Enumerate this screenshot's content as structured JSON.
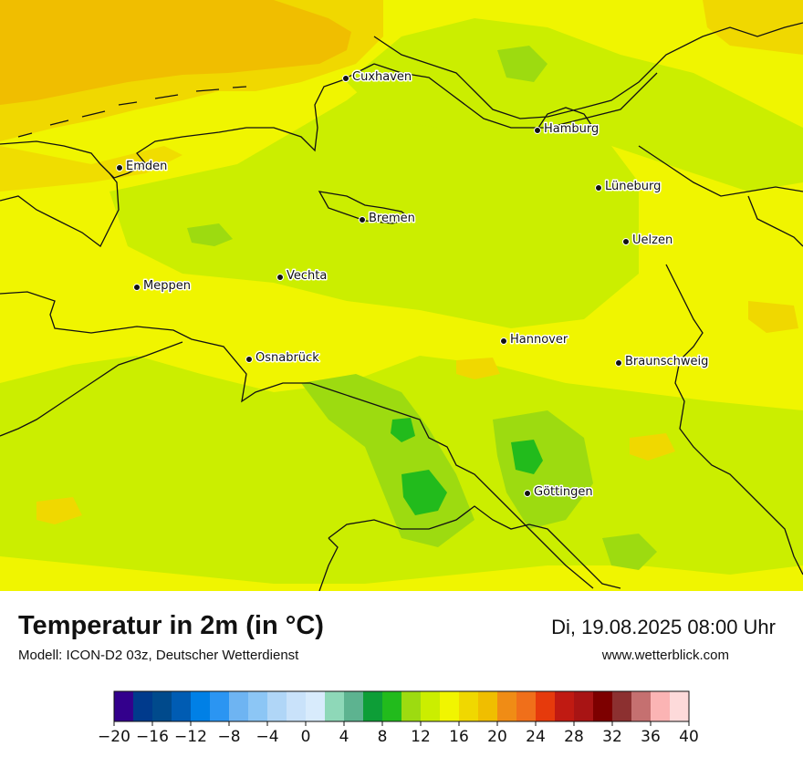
{
  "title": "Temperatur in 2m (in °C)",
  "model": "Modell: ICON-D2 03z, Deutscher Wetterdienst",
  "datetime": "Di, 19.08.2025 08:00 Uhr",
  "website": "www.wetterblick.com",
  "cities": [
    {
      "name": "Cuxhaven"
    },
    {
      "name": "Hamburg"
    },
    {
      "name": "Emden"
    },
    {
      "name": "Lüneburg"
    },
    {
      "name": "Bremen"
    },
    {
      "name": "Uelzen"
    },
    {
      "name": "Vechta"
    },
    {
      "name": "Meppen"
    },
    {
      "name": "Hannover"
    },
    {
      "name": "Osnabrück"
    },
    {
      "name": "Braunschweig"
    },
    {
      "name": "Göttingen"
    }
  ],
  "legend": {
    "unit": "°C",
    "min": -20,
    "max": 40,
    "step": 2,
    "tick_labels": [
      "−20",
      "−16",
      "−12",
      "−8",
      "−4",
      "0",
      "4",
      "8",
      "12",
      "16",
      "20",
      "24",
      "28",
      "32",
      "36",
      "40"
    ],
    "colors": [
      "#33008c",
      "#003a8c",
      "#004a8c",
      "#005cb3",
      "#0080e6",
      "#2b95f2",
      "#6eb4f2",
      "#8cc6f5",
      "#b0d6f7",
      "#c9e2fa",
      "#d8ebfc",
      "#8ed8b8",
      "#5db390",
      "#0d9e37",
      "#22bb1c",
      "#9ddb10",
      "#cbee00",
      "#f1f500",
      "#f0d800",
      "#f0be00",
      "#f08c15",
      "#f06f1a",
      "#e63a0c",
      "#c01a12",
      "#a81414",
      "#7d0000",
      "#8c3030",
      "#c57070",
      "#fbb4b4",
      "#fddada"
    ]
  },
  "map_colors": {
    "temp_14": "#c8eb00",
    "temp_16": "#f0f500",
    "temp_18": "#f0d800",
    "temp_20": "#f0be00",
    "temp_12": "#9ddb10",
    "temp_10": "#22bb1c",
    "borders": "#111111"
  }
}
